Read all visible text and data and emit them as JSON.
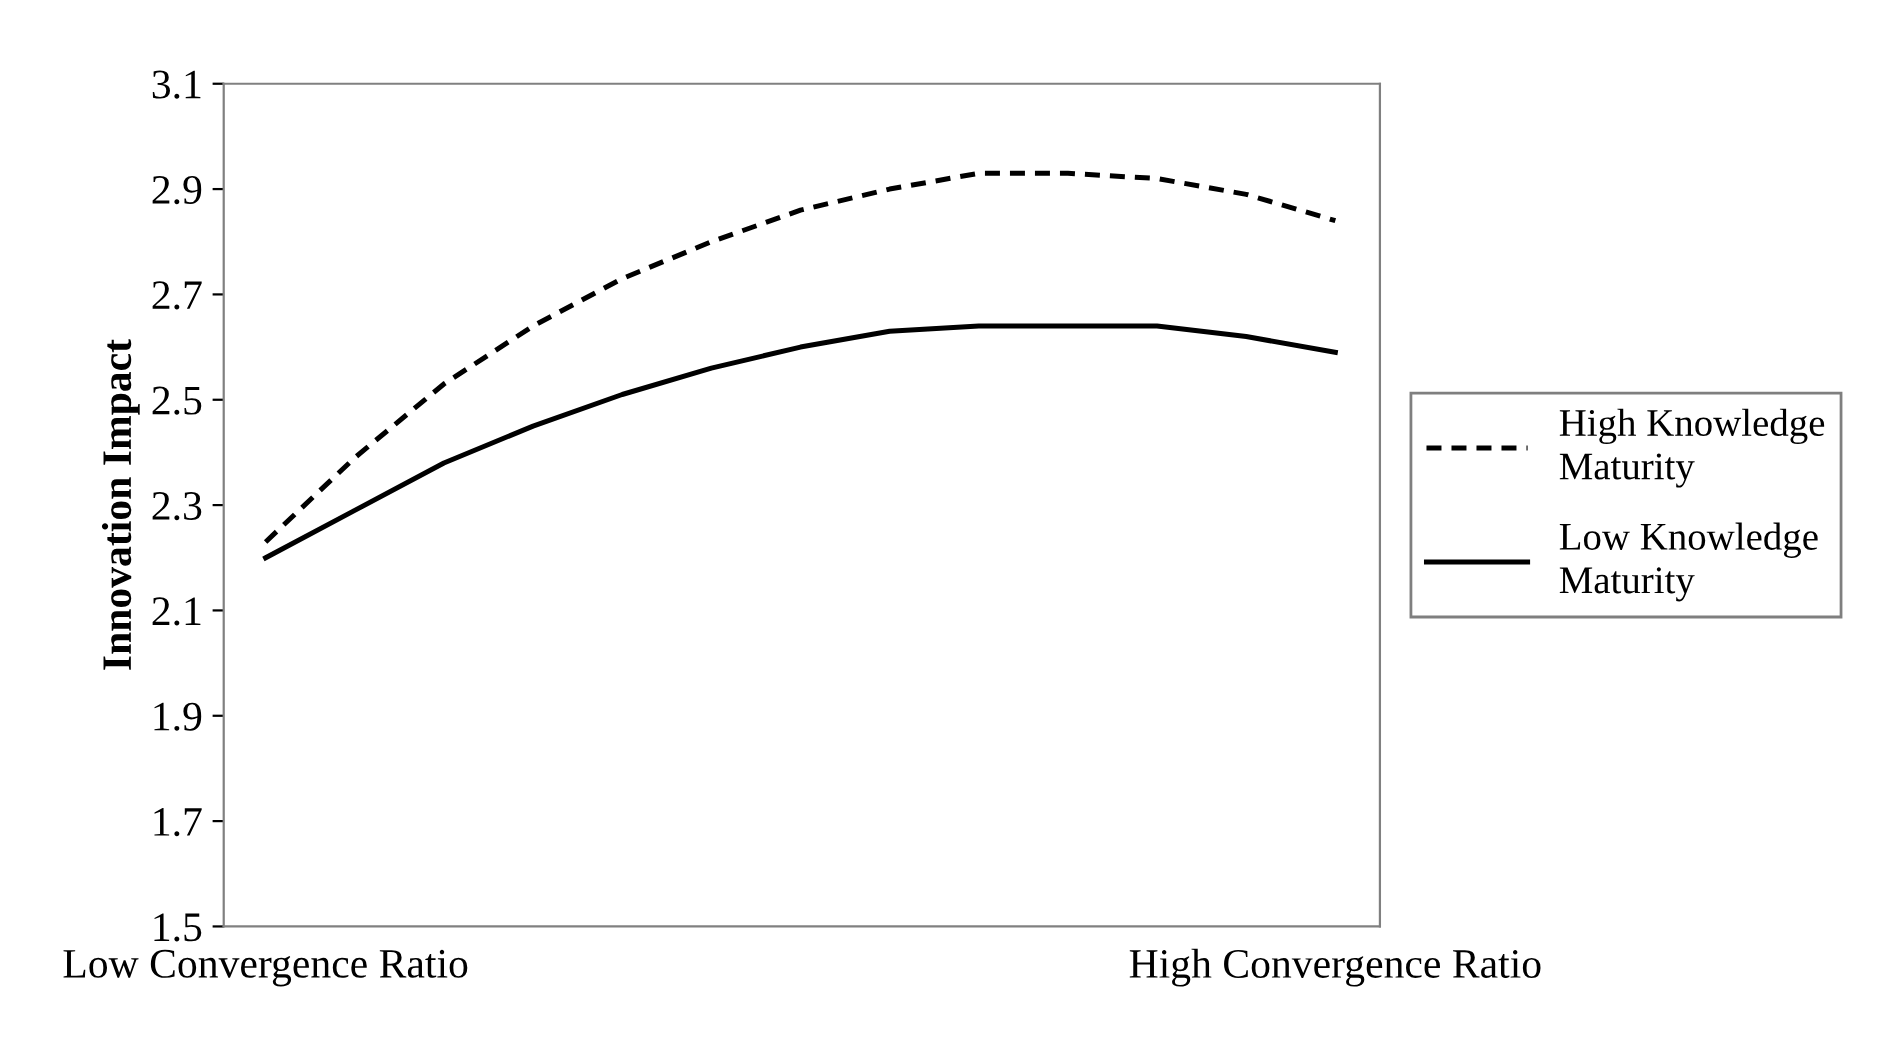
{
  "chart_data": {
    "type": "line",
    "ylabel": "Innovation Impact",
    "categories": [
      "Low Convergence Ratio",
      null,
      null,
      null,
      null,
      null,
      null,
      null,
      null,
      null,
      null,
      null,
      "High Convergence Ratio"
    ],
    "series": [
      {
        "name": "High Knowledge Maturity",
        "color": "#000000",
        "line_style": "dashed",
        "values": [
          2.23,
          2.39,
          2.53,
          2.64,
          2.73,
          2.8,
          2.86,
          2.9,
          2.93,
          2.93,
          2.92,
          2.89,
          2.84
        ]
      },
      {
        "name": "Low Knowledge Maturity",
        "color": "#000000",
        "line_style": "solid",
        "values": [
          2.2,
          2.29,
          2.38,
          2.45,
          2.51,
          2.56,
          2.6,
          2.63,
          2.64,
          2.64,
          2.64,
          2.62,
          2.59
        ]
      }
    ],
    "ylim": [
      1.5,
      3.1
    ],
    "yticks": [
      1.5,
      1.7,
      1.9,
      2.1,
      2.3,
      2.5,
      2.7,
      2.9,
      3.1
    ],
    "grid": false,
    "legend": "right",
    "marker": "none"
  }
}
